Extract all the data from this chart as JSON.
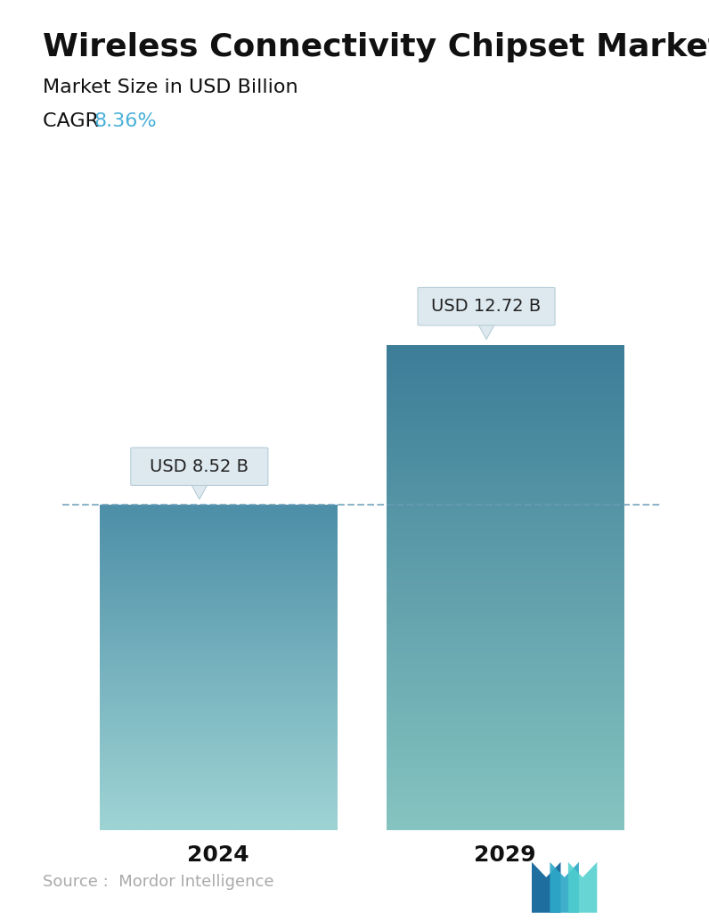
{
  "title": "Wireless Connectivity Chipset Market",
  "subtitle": "Market Size in USD Billion",
  "cagr_label": "CAGR ",
  "cagr_value": "8.36%",
  "cagr_color": "#4ab0d9",
  "categories": [
    "2024",
    "2029"
  ],
  "values": [
    8.52,
    12.72
  ],
  "bar_labels": [
    "USD 8.52 B",
    "USD 12.72 B"
  ],
  "bar1_color_top": "#4d8fa8",
  "bar1_color_bottom": "#9fd4d4",
  "bar2_color_top": "#3d7d98",
  "bar2_color_bottom": "#85c4c0",
  "dashed_line_color": "#6a9cb8",
  "source_text": "Source :  Mordor Intelligence",
  "source_color": "#aaaaaa",
  "background_color": "#ffffff",
  "title_fontsize": 26,
  "subtitle_fontsize": 16,
  "cagr_fontsize": 16,
  "tick_fontsize": 18,
  "source_fontsize": 13,
  "bubble_facecolor": "#dde9ef",
  "bubble_edgecolor": "#b8cdd8",
  "bubble_text_color": "#222222",
  "bubble_fontsize": 14,
  "ylim": [
    0,
    15
  ],
  "bar_positions": [
    0.27,
    0.73
  ],
  "bar_width": 0.38
}
